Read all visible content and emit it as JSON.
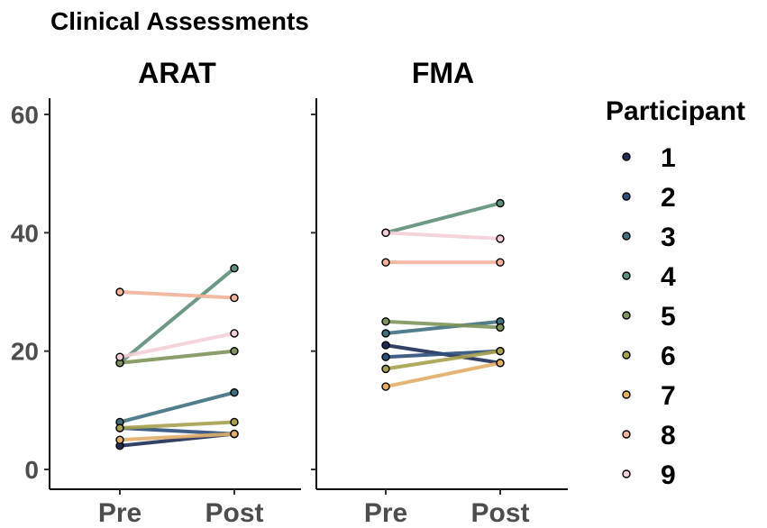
{
  "chart_data": {
    "type": "line",
    "title": "Clinical Assessments",
    "ylim": [
      0,
      60
    ],
    "yticks": [
      "0",
      "20",
      "40",
      "60"
    ],
    "xticks": [
      "Pre",
      "Post"
    ],
    "legend": {
      "title": "Participant",
      "position": "right",
      "entries": [
        "1",
        "2",
        "3",
        "4",
        "5",
        "6",
        "7",
        "8",
        "9"
      ]
    },
    "colors": {
      "1": "#1f2d56",
      "2": "#2e4f7b",
      "3": "#3f6f80",
      "4": "#5e8f78",
      "5": "#7f935c",
      "6": "#a7a04e",
      "7": "#e3ae6a",
      "8": "#f1b39a",
      "9": "#f4cfd6"
    },
    "panels": [
      {
        "title": "ARAT",
        "series": [
          {
            "name": "1",
            "values": [
              4,
              6
            ]
          },
          {
            "name": "2",
            "values": [
              7,
              6
            ]
          },
          {
            "name": "3",
            "values": [
              8,
              13
            ]
          },
          {
            "name": "4",
            "values": [
              18,
              34
            ]
          },
          {
            "name": "5",
            "values": [
              18,
              20
            ]
          },
          {
            "name": "6",
            "values": [
              7,
              8
            ]
          },
          {
            "name": "7",
            "values": [
              5,
              6
            ]
          },
          {
            "name": "8",
            "values": [
              30,
              29
            ]
          },
          {
            "name": "9",
            "values": [
              19,
              23
            ]
          }
        ]
      },
      {
        "title": "FMA",
        "series": [
          {
            "name": "1",
            "values": [
              21,
              18
            ]
          },
          {
            "name": "2",
            "values": [
              19,
              20
            ]
          },
          {
            "name": "3",
            "values": [
              23,
              25
            ]
          },
          {
            "name": "4",
            "values": [
              40,
              45
            ]
          },
          {
            "name": "5",
            "values": [
              25,
              24
            ]
          },
          {
            "name": "6",
            "values": [
              17,
              20
            ]
          },
          {
            "name": "7",
            "values": [
              14,
              18
            ]
          },
          {
            "name": "8",
            "values": [
              35,
              35
            ]
          },
          {
            "name": "9",
            "values": [
              40,
              39
            ]
          }
        ]
      }
    ]
  }
}
